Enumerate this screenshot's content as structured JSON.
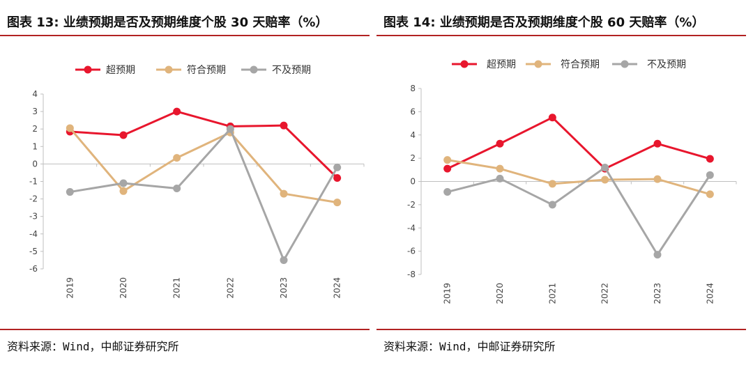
{
  "panels": [
    {
      "title": "图表 13:   业绩预期是否及预期维度个股 30 天赔率（%）",
      "source": "资料来源：Wind，中邮证券研究所"
    },
    {
      "title": "图表 14:  业绩预期是否及预期维度个股 60 天赔率（%）",
      "source": "资料来源：Wind，中邮证券研究所"
    }
  ],
  "colors": {
    "rule": "#b22222",
    "chao": "#e8162d",
    "fuhe": "#e0b47c",
    "buji": "#a6a6a6"
  },
  "chart_data": [
    {
      "type": "line",
      "categories": [
        "2019",
        "2020",
        "2021",
        "2022",
        "2023",
        "2024"
      ],
      "ylim": [
        -6,
        4
      ],
      "yticks": [
        4,
        3,
        2,
        1,
        0,
        -1,
        -2,
        -3,
        -4,
        -5,
        -6
      ],
      "ytick_labels": [
        "4",
        "3",
        "2",
        "1",
        "0",
        "-1",
        "-2",
        "-3",
        "-4",
        "-5",
        "-6"
      ],
      "legend_position": "top",
      "grid": false,
      "series": [
        {
          "name": "超预期",
          "color": "#e8162d",
          "values": [
            1.85,
            1.65,
            3.0,
            2.15,
            2.2,
            -0.8
          ]
        },
        {
          "name": "符合预期",
          "color": "#e0b47c",
          "values": [
            2.05,
            -1.55,
            0.35,
            1.8,
            -1.7,
            -2.2
          ]
        },
        {
          "name": "不及预期",
          "color": "#a6a6a6",
          "values": [
            -1.6,
            -1.1,
            -1.4,
            2.0,
            -5.5,
            -0.2
          ]
        }
      ]
    },
    {
      "type": "line",
      "categories": [
        "2019",
        "2020",
        "2021",
        "2022",
        "2023",
        "2024"
      ],
      "ylim": [
        -8,
        8
      ],
      "yticks": [
        8,
        6,
        4,
        2,
        0,
        -2,
        -4,
        -6,
        -8
      ],
      "ytick_labels": [
        "8",
        "6",
        "4",
        "2",
        "0",
        "-2",
        "-4",
        "-6",
        "-8"
      ],
      "legend_position": "top",
      "grid": false,
      "series": [
        {
          "name": "超预期",
          "color": "#e8162d",
          "values": [
            1.1,
            3.25,
            5.5,
            1.1,
            3.25,
            1.95
          ]
        },
        {
          "name": "符合预期",
          "color": "#e0b47c",
          "values": [
            1.85,
            1.1,
            -0.2,
            0.15,
            0.2,
            -1.1
          ]
        },
        {
          "name": "不及预期",
          "color": "#a6a6a6",
          "values": [
            -0.9,
            0.25,
            -2.0,
            1.2,
            -6.3,
            0.55
          ]
        }
      ]
    }
  ]
}
